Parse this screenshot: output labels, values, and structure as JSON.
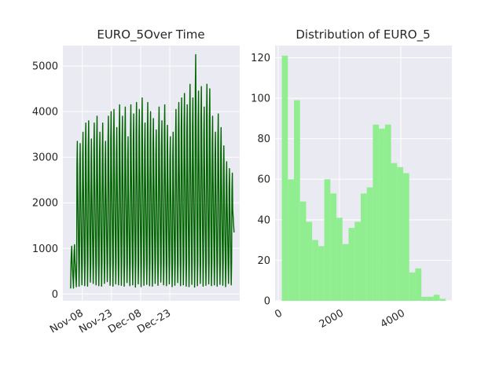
{
  "chart_data": [
    {
      "type": "line",
      "title": "EURO_5Over Time",
      "xlabel": "",
      "ylabel": "",
      "x_tick_labels": [
        "Nov-08",
        "Nov-23",
        "Dec-08",
        "Dec-23"
      ],
      "y_ticks": [
        0,
        1000,
        2000,
        3000,
        4000,
        5000
      ],
      "ylim": [
        -150,
        5450
      ],
      "xlim_days": [
        -10,
        81
      ],
      "x_tick_days": [
        0,
        15,
        30,
        45
      ],
      "grid": true,
      "color": "#006400",
      "series": [
        {
          "values_by_day": [
            [
              120,
              1050
            ],
            [
              130,
              1080
            ],
            [
              160,
              3350
            ],
            [
              170,
              3300
            ],
            [
              200,
              3550
            ],
            [
              180,
              3750
            ],
            [
              170,
              3800
            ],
            [
              260,
              3400
            ],
            [
              230,
              3750
            ],
            [
              200,
              3900
            ],
            [
              180,
              3550
            ],
            [
              170,
              3750
            ],
            [
              230,
              3350
            ],
            [
              270,
              3900
            ],
            [
              190,
              4000
            ],
            [
              170,
              4050
            ],
            [
              220,
              3650
            ],
            [
              200,
              4150
            ],
            [
              190,
              3900
            ],
            [
              170,
              4100
            ],
            [
              250,
              3450
            ],
            [
              180,
              4150
            ],
            [
              200,
              3950
            ],
            [
              150,
              4200
            ],
            [
              220,
              4050
            ],
            [
              160,
              4300
            ],
            [
              190,
              3750
            ],
            [
              210,
              4200
            ],
            [
              180,
              4000
            ],
            [
              170,
              3850
            ],
            [
              230,
              3600
            ],
            [
              190,
              4100
            ],
            [
              260,
              3800
            ],
            [
              200,
              4150
            ],
            [
              180,
              3700
            ],
            [
              220,
              3450
            ],
            [
              160,
              3550
            ],
            [
              190,
              4050
            ],
            [
              250,
              4200
            ],
            [
              180,
              4300
            ],
            [
              200,
              4400
            ],
            [
              170,
              4150
            ],
            [
              160,
              4600
            ],
            [
              210,
              4300
            ],
            [
              150,
              5250
            ],
            [
              180,
              4450
            ],
            [
              230,
              4550
            ],
            [
              170,
              4100
            ],
            [
              190,
              4600
            ],
            [
              220,
              4500
            ],
            [
              180,
              3900
            ],
            [
              200,
              3550
            ],
            [
              170,
              3950
            ],
            [
              210,
              3650
            ],
            [
              190,
              3250
            ],
            [
              160,
              2900
            ],
            [
              230,
              2750
            ],
            [
              200,
              2650
            ]
          ],
          "start_day": -6,
          "last_value": 1350
        }
      ]
    },
    {
      "type": "bar",
      "title": "Distribution of EURO_5",
      "xlabel": "",
      "ylabel": "",
      "x_ticks": [
        0,
        2000,
        4000
      ],
      "y_ticks": [
        0,
        20,
        40,
        60,
        80,
        100,
        120
      ],
      "xlim": [
        -100,
        5670
      ],
      "ylim": [
        0,
        126
      ],
      "grid": true,
      "color": "#90ee90",
      "bin_width": 198,
      "bin_start": 120,
      "values": [
        121,
        60,
        99,
        49,
        39,
        30,
        27,
        60,
        53,
        41,
        28,
        36,
        39,
        53,
        56,
        87,
        85,
        87,
        68,
        66,
        63,
        14,
        16,
        2,
        2,
        3,
        1
      ]
    }
  ]
}
